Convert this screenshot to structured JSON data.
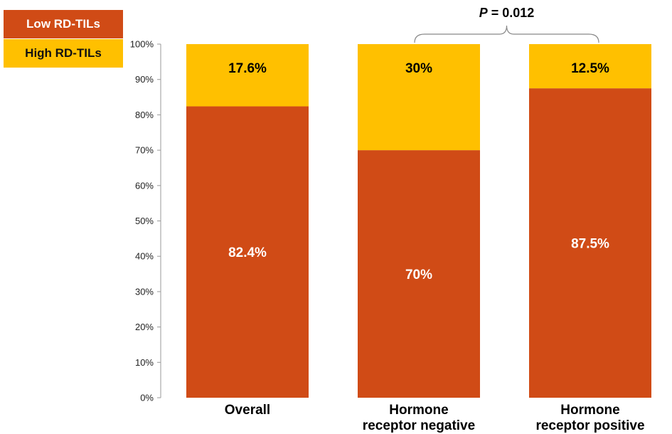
{
  "colors": {
    "low": "#D04B16",
    "high": "#FFC000"
  },
  "legend": {
    "low_label": "Low RD-TILs",
    "high_label": "High RD-TILs"
  },
  "annotation": {
    "p_letter": "P",
    "p_value": " = 0.012"
  },
  "chart_data": {
    "type": "bar",
    "stacked": true,
    "categories": [
      [
        "Overall"
      ],
      [
        "Hormone",
        "receptor negative"
      ],
      [
        "Hormone",
        "receptor positive"
      ]
    ],
    "series": [
      {
        "name": "Low RD-TILs",
        "values": [
          82.4,
          70,
          87.5
        ],
        "labels": [
          "82.4%",
          "70%",
          "87.5%"
        ],
        "color": "#D04B16"
      },
      {
        "name": "High RD-TILs",
        "values": [
          17.6,
          30,
          12.5
        ],
        "labels": [
          "17.6%",
          "30%",
          "12.5%"
        ],
        "color": "#FFC000"
      }
    ],
    "yticks": [
      "0%",
      "10%",
      "20%",
      "30%",
      "40%",
      "50%",
      "60%",
      "70%",
      "80%",
      "90%",
      "100%"
    ],
    "ylim": [
      0,
      100
    ],
    "legend_position": "top-left"
  }
}
